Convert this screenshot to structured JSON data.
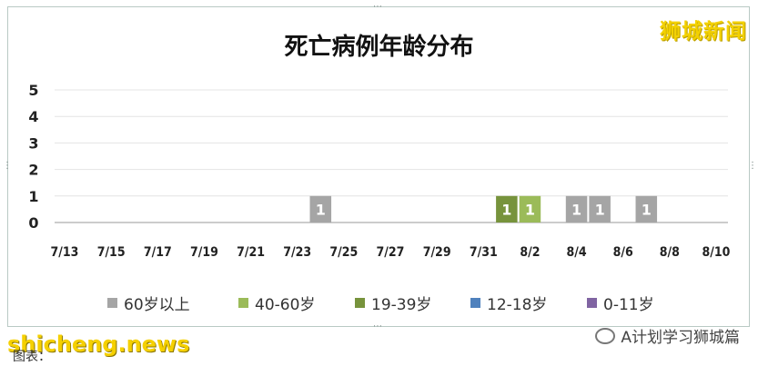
{
  "brand": "狮城新闻",
  "watermark_left": "shicheng.news",
  "watermark_right": "A计划学习狮城篇",
  "caption": "图表：",
  "colors": {
    "60plus": "#a5a5a5",
    "40_60": "#9bbb59",
    "19_39": "#77933c",
    "12_18": "#4f81bd",
    "0_11": "#8064a2"
  },
  "chart_data": {
    "type": "bar",
    "title": "死亡病例年龄分布",
    "xlabel": "",
    "ylabel": "",
    "ylim": [
      0,
      5
    ],
    "yticks": [
      "0",
      "1",
      "2",
      "3",
      "4",
      "5"
    ],
    "xticks": [
      "7/13",
      "7/15",
      "7/17",
      "7/19",
      "7/21",
      "7/23",
      "7/25",
      "7/27",
      "7/29",
      "7/31",
      "8/2",
      "8/4",
      "8/6",
      "8/8",
      "8/10"
    ],
    "x_start": "7/13",
    "x_end": "8/10",
    "grid": true,
    "legend_position": "bottom",
    "series": [
      {
        "name": "60岁以上",
        "color_key": "60plus",
        "points": [
          {
            "date": "7/24",
            "value": 1
          },
          {
            "date": "8/4",
            "value": 1
          },
          {
            "date": "8/5",
            "value": 1
          },
          {
            "date": "8/7",
            "value": 1
          }
        ]
      },
      {
        "name": "40-60岁",
        "color_key": "40_60",
        "points": [
          {
            "date": "8/2",
            "value": 1
          }
        ]
      },
      {
        "name": "19-39岁",
        "color_key": "19_39",
        "points": [
          {
            "date": "8/1",
            "value": 1
          }
        ]
      },
      {
        "name": "12-18岁",
        "color_key": "12_18",
        "points": []
      },
      {
        "name": "0-11岁",
        "color_key": "0_11",
        "points": []
      }
    ]
  }
}
